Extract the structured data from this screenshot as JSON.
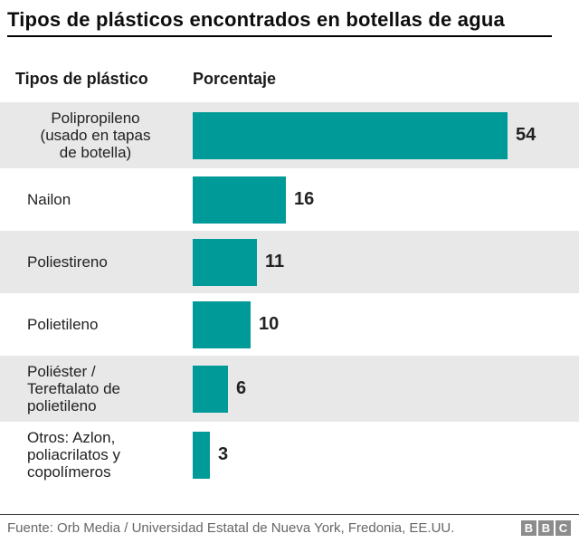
{
  "header": {
    "title": "Tipos de plásticos encontrados en botellas de agua"
  },
  "table_headers": {
    "type_column": "Tipos de plástico",
    "value_column": "Porcentaje"
  },
  "rows": [
    {
      "label_lines": [
        "Polipropileno",
        "(usado en tapas",
        "de botella)"
      ],
      "value": "54"
    },
    {
      "label_lines": [
        "Nailon"
      ],
      "value": "16"
    },
    {
      "label_lines": [
        "Poliestireno"
      ],
      "value": "11"
    },
    {
      "label_lines": [
        "Polietileno"
      ],
      "value": "10"
    },
    {
      "label_lines": [
        "Poliéster /",
        "Tereftalato de",
        "polietileno"
      ],
      "value": "6"
    },
    {
      "label_lines": [
        "Otros: Azlon,",
        "poliacrilatos y",
        "copolímeros"
      ],
      "value": "3"
    }
  ],
  "footer": {
    "source": "Fuente: Orb Media / Universidad Estatal de Nueva York, Fredonia, EE.UU.",
    "logo_letters": [
      "B",
      "B",
      "C"
    ]
  },
  "colors": {
    "bar": "#009a98",
    "row_alt_bg": "#e8e8e8"
  },
  "chart_data": {
    "type": "bar",
    "orientation": "horizontal",
    "title": "Tipos de plásticos encontrados en botellas de agua",
    "categories": [
      "Polipropileno (usado en tapas de botella)",
      "Nailon",
      "Poliestireno",
      "Polietileno",
      "Poliéster / Tereftalato de polietileno",
      "Otros: Azlon, poliacrilatos y copolímeros"
    ],
    "values": [
      54,
      16,
      11,
      10,
      6,
      3
    ],
    "value_axis_label": "Porcentaje",
    "xlim": [
      0,
      54
    ],
    "grid": false,
    "legend": "none",
    "bar_color": "#009a98",
    "source": "Fuente: Orb Media / Universidad Estatal de Nueva York, Fredonia, EE.UU."
  }
}
